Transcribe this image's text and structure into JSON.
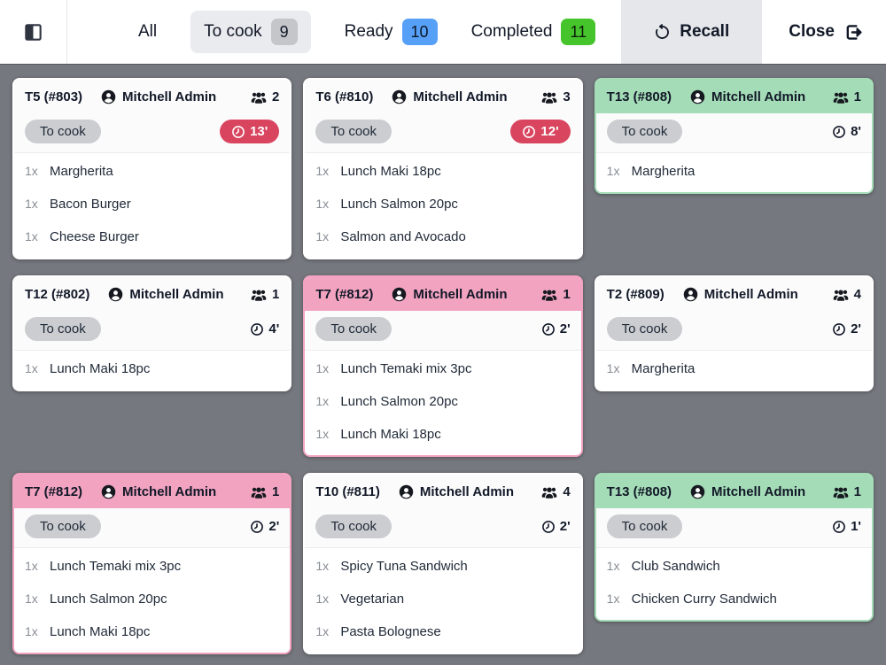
{
  "topbar": {
    "filters": [
      {
        "label": "All",
        "count": null,
        "active": false,
        "badge": null
      },
      {
        "label": "To cook",
        "count": "9",
        "active": true,
        "badge": "gray"
      },
      {
        "label": "Ready",
        "count": "10",
        "active": false,
        "badge": "blue"
      },
      {
        "label": "Completed",
        "count": "11",
        "active": false,
        "badge": "green"
      }
    ],
    "recall_label": "Recall",
    "close_label": "Close"
  },
  "colors": {
    "green": "#a5dcb8",
    "pink": "#f2a3c0",
    "alert_red": "#d9455f",
    "badge_blue": "#57a0f7",
    "badge_green": "#45c52b",
    "badge_gray": "#c4c6ca",
    "page_background": "#75787e"
  },
  "cards": [
    {
      "table": "T5 (#803)",
      "server": "Mitchell Admin",
      "guests": "2",
      "stage": "To cook",
      "timer": "13'",
      "timer_alert": true,
      "accent": null,
      "items": [
        {
          "qty": "1x",
          "name": "Margherita"
        },
        {
          "qty": "1x",
          "name": "Bacon Burger"
        },
        {
          "qty": "1x",
          "name": "Cheese Burger"
        }
      ]
    },
    {
      "table": "T6 (#810)",
      "server": "Mitchell Admin",
      "guests": "3",
      "stage": "To cook",
      "timer": "12'",
      "timer_alert": true,
      "accent": null,
      "items": [
        {
          "qty": "1x",
          "name": "Lunch Maki 18pc"
        },
        {
          "qty": "1x",
          "name": "Lunch Salmon 20pc"
        },
        {
          "qty": "1x",
          "name": "Salmon and Avocado"
        }
      ]
    },
    {
      "table": "T13 (#808)",
      "server": "Mitchell Admin",
      "guests": "1",
      "stage": "To cook",
      "timer": "8'",
      "timer_alert": false,
      "accent": "green",
      "items": [
        {
          "qty": "1x",
          "name": "Margherita"
        }
      ]
    },
    {
      "table": "T12 (#802)",
      "server": "Mitchell Admin",
      "guests": "1",
      "stage": "To cook",
      "timer": "4'",
      "timer_alert": false,
      "accent": null,
      "items": [
        {
          "qty": "1x",
          "name": "Lunch Maki 18pc"
        }
      ]
    },
    {
      "table": "T7 (#812)",
      "server": "Mitchell Admin",
      "guests": "1",
      "stage": "To cook",
      "timer": "2'",
      "timer_alert": false,
      "accent": "pink",
      "items": [
        {
          "qty": "1x",
          "name": "Lunch Temaki mix 3pc"
        },
        {
          "qty": "1x",
          "name": "Lunch Salmon 20pc"
        },
        {
          "qty": "1x",
          "name": "Lunch Maki 18pc"
        }
      ]
    },
    {
      "table": "T2 (#809)",
      "server": "Mitchell Admin",
      "guests": "4",
      "stage": "To cook",
      "timer": "2'",
      "timer_alert": false,
      "accent": null,
      "items": [
        {
          "qty": "1x",
          "name": "Margherita"
        }
      ]
    },
    {
      "table": "T7 (#812)",
      "server": "Mitchell Admin",
      "guests": "1",
      "stage": "To cook",
      "timer": "2'",
      "timer_alert": false,
      "accent": "pink",
      "items": [
        {
          "qty": "1x",
          "name": "Lunch Temaki mix 3pc"
        },
        {
          "qty": "1x",
          "name": "Lunch Salmon 20pc"
        },
        {
          "qty": "1x",
          "name": "Lunch Maki 18pc"
        }
      ]
    },
    {
      "table": "T10 (#811)",
      "server": "Mitchell Admin",
      "guests": "4",
      "stage": "To cook",
      "timer": "2'",
      "timer_alert": false,
      "accent": null,
      "items": [
        {
          "qty": "1x",
          "name": "Spicy Tuna Sandwich"
        },
        {
          "qty": "1x",
          "name": "Vegetarian"
        },
        {
          "qty": "1x",
          "name": "Pasta Bolognese"
        }
      ]
    },
    {
      "table": "T13 (#808)",
      "server": "Mitchell Admin",
      "guests": "1",
      "stage": "To cook",
      "timer": "1'",
      "timer_alert": false,
      "accent": "green",
      "items": [
        {
          "qty": "1x",
          "name": "Club Sandwich"
        },
        {
          "qty": "1x",
          "name": "Chicken Curry Sandwich"
        }
      ]
    }
  ]
}
